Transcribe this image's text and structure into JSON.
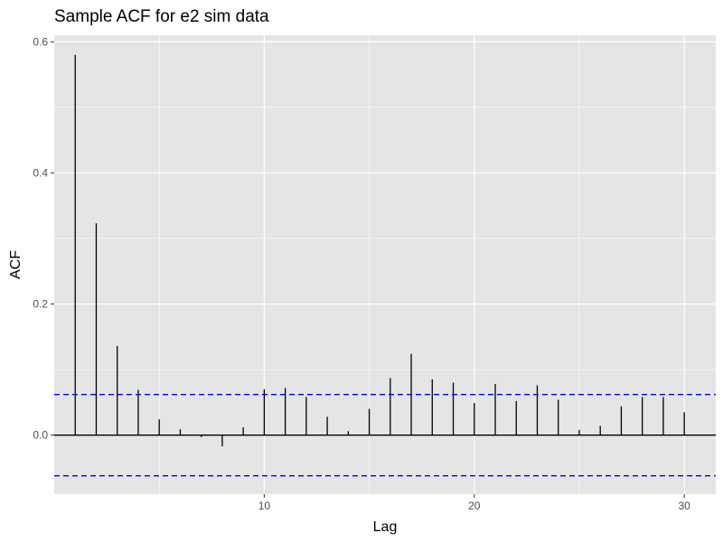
{
  "chart_data": {
    "type": "bar",
    "title": "Sample ACF for e2 sim data",
    "xlabel": "Lag",
    "ylabel": "ACF",
    "xlim": [
      0,
      31.5
    ],
    "ylim": [
      -0.09,
      0.61
    ],
    "x_ticks": [
      10,
      20,
      30
    ],
    "x_tick_labels": [
      "10",
      "20",
      "30"
    ],
    "y_ticks": [
      0.0,
      0.2,
      0.4,
      0.6
    ],
    "y_tick_labels": [
      "0.0",
      "0.2",
      "0.4",
      "0.6"
    ],
    "x_minor_ticks": [
      5,
      15,
      25
    ],
    "y_minor_ticks": [
      -0.1,
      0.1,
      0.3,
      0.5
    ],
    "grid": true,
    "confidence_bound": 0.062,
    "lags": [
      1,
      2,
      3,
      4,
      5,
      6,
      7,
      8,
      9,
      10,
      11,
      12,
      13,
      14,
      15,
      16,
      17,
      18,
      19,
      20,
      21,
      22,
      23,
      24,
      25,
      26,
      27,
      28,
      29,
      30
    ],
    "values": [
      0.58,
      0.323,
      0.136,
      0.069,
      0.024,
      0.009,
      -0.003,
      -0.017,
      0.012,
      0.07,
      0.072,
      0.058,
      0.028,
      0.006,
      0.04,
      0.087,
      0.124,
      0.085,
      0.08,
      0.049,
      0.078,
      0.052,
      0.076,
      0.054,
      0.008,
      0.014,
      0.044,
      0.058,
      0.058,
      0.035
    ],
    "colors": {
      "panel_bg": "#e5e5e5",
      "grid": "#ffffff",
      "spike": "#000000",
      "confidence": "#0000ff",
      "tick_text": "#4d4d4d"
    }
  }
}
